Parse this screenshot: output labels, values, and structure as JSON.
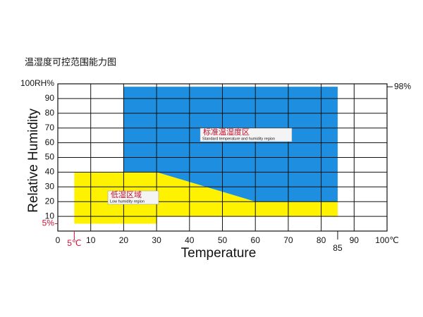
{
  "chart_data": {
    "type": "region",
    "title": "温湿度可控范围能力图",
    "x_label": "Temperature",
    "y_label": "Relative Humidity",
    "xlim": [
      0,
      100
    ],
    "ylim": [
      0,
      100
    ],
    "xticks": [
      0,
      10,
      20,
      30,
      40,
      50,
      60,
      70,
      80,
      90,
      {
        "value": 100,
        "label": "100℃"
      }
    ],
    "yticks": [
      10,
      20,
      30,
      40,
      50,
      60,
      70,
      80,
      90,
      {
        "value": 100,
        "label": "100RH%"
      }
    ],
    "grid": true,
    "x_markers": [
      {
        "value": 5,
        "label": "5℃",
        "color": "#d0103a"
      },
      {
        "value": 85,
        "label": "85",
        "color": "#111111"
      }
    ],
    "y_markers": [
      {
        "value": 98,
        "label": "98%",
        "color": "#111111"
      },
      {
        "value": 5,
        "label": "5%",
        "color": "#d0103a"
      }
    ],
    "series": [
      {
        "name": "标准温湿度区",
        "sublabel": "Standard temperature and humidity region",
        "color": "#1e8fe0",
        "x": [
          20,
          85,
          85,
          60,
          30,
          20
        ],
        "y": [
          98,
          98,
          20,
          20,
          40,
          40
        ]
      },
      {
        "name": "低湿区域",
        "sublabel": "Low humidity region",
        "color": "#fff200",
        "x": [
          5,
          30,
          60,
          85,
          85,
          30,
          30,
          5
        ],
        "y": [
          40,
          40,
          20,
          20,
          10,
          10,
          5,
          5
        ]
      }
    ]
  }
}
